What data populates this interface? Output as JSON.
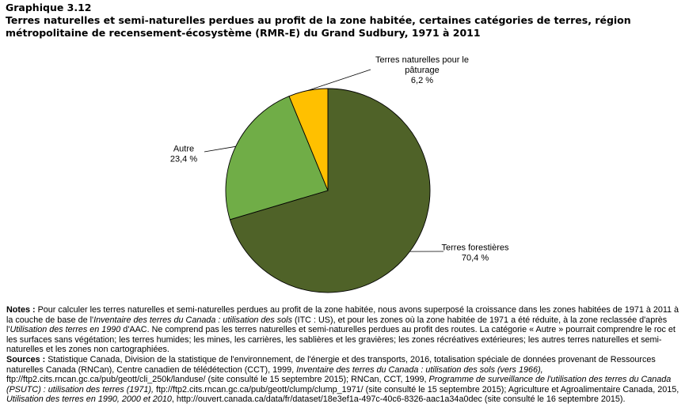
{
  "header": {
    "graph_label": "Graphique  3.12",
    "title": "Terres naturelles et semi-naturelles perdues au profit de la zone habitée, certaines catégories de terres, région métropolitaine  de recensement-écosystème (RMR-E)  du Grand Sudbury, 1971 à 2011"
  },
  "chart_data": {
    "type": "pie",
    "title": "Terres naturelles et semi-naturelles perdues au profit de la zone habitée, certaines catégories de terres, région métropolitaine  de recensement-écosystème (RMR-E)  du Grand Sudbury, 1971 à 2011",
    "slices": [
      {
        "label": "Terres forestières",
        "value": 70.4,
        "value_label": "70,4 %",
        "color": "#4f6228"
      },
      {
        "label": "Autre",
        "value": 23.4,
        "value_label": "23,4 %",
        "color": "#70ad47"
      },
      {
        "label": "Terres naturelles pour le pâturage",
        "value": 6.2,
        "value_label": "6,2 %",
        "color": "#ffc000"
      }
    ],
    "label_lines": [
      [
        "Terres forestières",
        "70,4 %"
      ],
      [
        "Autre",
        "23,4 %"
      ],
      [
        "Terres naturelles pour le",
        "pâturage",
        "6,2 %"
      ]
    ],
    "start_angle_deg": 0,
    "direction": "clockwise"
  },
  "notes": {
    "notes_label": "Notes :",
    "notes_segments": [
      {
        "t": " Pour calculer les terres naturelles et semi-naturelles perdues au profit de la zone habitée, nous avons superposé la croissance dans les zones habitées de 1971 à 2011 à la couche de base de l'",
        "i": false
      },
      {
        "t": "Inventaire des terres du Canada : utilisation des sols",
        "i": true
      },
      {
        "t": " (ITC : US), et  pour les zones où la zone habitée de 1971 a été réduite, à la zone reclassée d'après l'",
        "i": false
      },
      {
        "t": "Utilisation des terres en 1990",
        "i": true
      },
      {
        "t": " d'AAC. Ne comprend pas les terres naturelles et semi-naturelles perdues au profit des routes. La catégorie « Autre » pourrait comprendre le roc et les surfaces sans végétation; les terres humides; les mines, les carrières, les sablières et les gravières; les zones récréatives extérieures; les autres terres naturelles et semi-naturelles et les zones non cartographiées.",
        "i": false
      }
    ],
    "sources_label": "Sources :",
    "sources_segments": [
      {
        "t": " Statistique Canada, Division de la statistique de l'environnement, de l'énergie et des transports, 2016, totalisation spéciale de données provenant de Ressources naturelles Canada (RNCan), Centre canadien de télédétection (CCT), 1999, ",
        "i": false
      },
      {
        "t": "Inventaire des terres du Canada : utilisation des sols (vers 1966),",
        "i": true
      },
      {
        "t": " ftp://ftp2.cits.rncan.gc.ca/pub/geott/cli_250k/landuse/ (site consulté le 15 septembre 2015); RNCan, CCT, 1999, ",
        "i": false
      },
      {
        "t": "Programme de surveillance de l'utilisation des terres du Canada (PSUTC) : utilisation des terres (1971),",
        "i": true
      },
      {
        "t": " ftp://ftp2.cits.rncan.gc.ca/pub/geott/clump/clump_1971/ (site consulté le 15 septembre 2015); Agriculture et Agroalimentaire Canada, 2015, ",
        "i": false
      },
      {
        "t": "Utilisation des terres en 1990, 2000 et 2010",
        "i": true
      },
      {
        "t": ", http://ouvert.canada.ca/data/fr/dataset/18e3ef1a-497c-40c6-8326-aac1a34a0dec (site consulté le 16 septembre 2015).",
        "i": false
      }
    ]
  }
}
